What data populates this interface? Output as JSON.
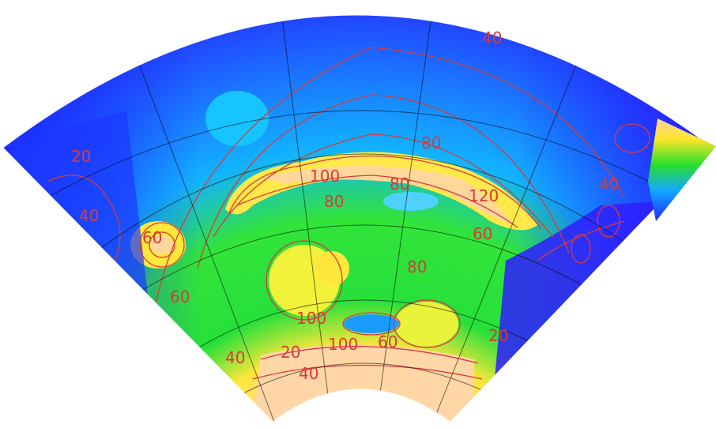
{
  "map": {
    "contour_labels": [
      "20",
      "40",
      "40",
      "60",
      "60",
      "80",
      "80",
      "80",
      "80",
      "100",
      "100",
      "120",
      "60",
      "100",
      "20",
      "40",
      "40",
      "60",
      "20",
      "40"
    ],
    "colors": {
      "low": "#1f2bff",
      "mid_low": "#12a8ff",
      "mid": "#2adf2a",
      "mid_high": "#ffe52a",
      "high": "#ffd3a0",
      "contour": "#d83a3a",
      "graticule": "#000000"
    }
  }
}
